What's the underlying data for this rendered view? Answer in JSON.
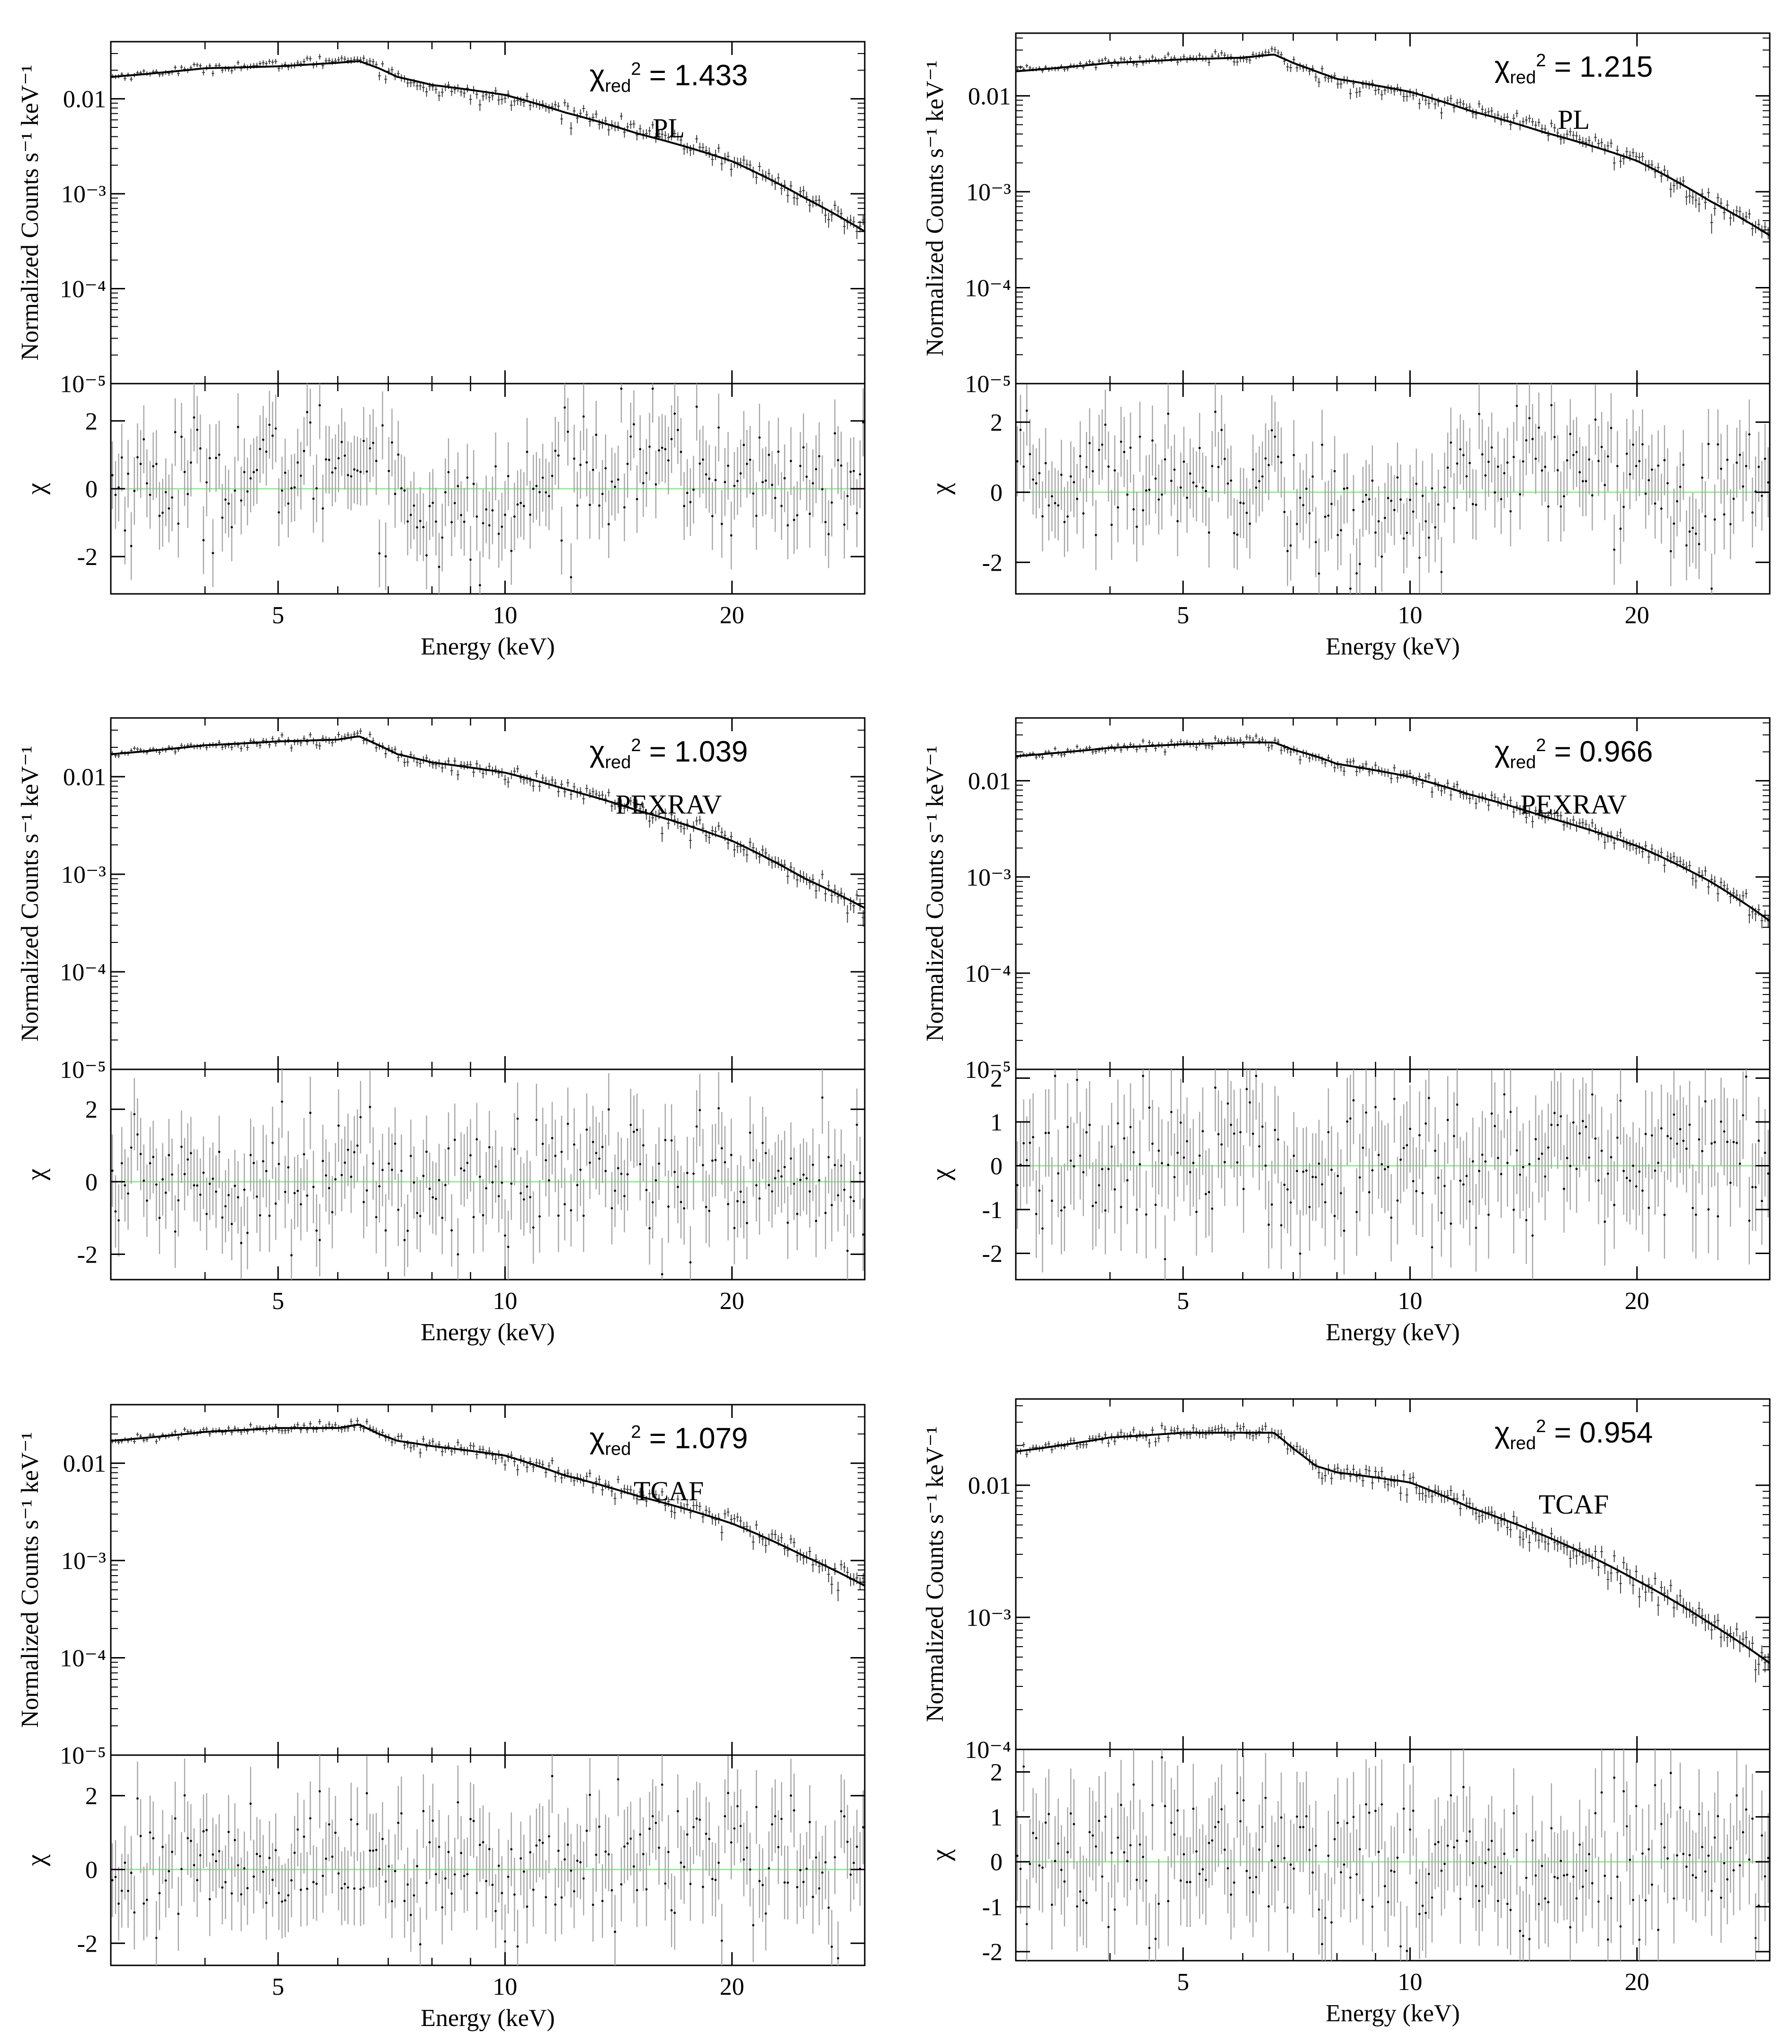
{
  "figure": {
    "panels": [
      {
        "chart_data": {
          "type": "scatter",
          "model": "PL",
          "chi2_value": "1.433",
          "xlabel": "Energy (keV)",
          "ylabel_spectrum": "Normalized Counts s⁻¹ keV⁻¹",
          "ylabel_residual": "χ",
          "x_scale": "log",
          "xlim": [
            3,
            30
          ],
          "x_ticks": [
            5,
            10,
            20
          ],
          "spectrum_scale": "log",
          "spectrum_ylim": [
            1e-05,
            0.04
          ],
          "spectrum_ticks": [
            "0.01",
            "10⁻³",
            "10⁻⁴",
            "10⁻⁵"
          ],
          "residual_ylim": [
            -3.1,
            3.1
          ],
          "residual_ticks": [
            2,
            0,
            -2
          ],
          "model_curve": {
            "x": [
              3,
              4,
              5,
              6,
              6.4,
              6.8,
              7.2,
              8,
              10,
              12,
              15,
              20,
              25,
              30
            ],
            "y": [
              0.017,
              0.021,
              0.022,
              0.024,
              0.025,
              0.021,
              0.017,
              0.014,
              0.011,
              0.0072,
              0.0043,
              0.0022,
              0.0009,
              0.0004
            ]
          },
          "residual_trend": {
            "x": [
              3,
              5,
              6.5,
              7.5,
              9,
              10,
              12,
              15,
              20,
              30
            ],
            "y": [
              0.2,
              0.5,
              1.2,
              -0.5,
              -1.0,
              -0.8,
              0.5,
              1.0,
              0.3,
              0.0
            ]
          }
        }
      },
      {
        "chart_data": {
          "type": "scatter",
          "model": "PL",
          "chi2_value": "1.215",
          "xlabel": "Energy (keV)",
          "ylabel_spectrum": "Normalized Counts s⁻¹ keV⁻¹",
          "ylabel_residual": "χ",
          "x_scale": "log",
          "xlim": [
            3,
            30
          ],
          "x_ticks": [
            5,
            10,
            20
          ],
          "spectrum_scale": "log",
          "spectrum_ylim": [
            1e-05,
            0.045
          ],
          "spectrum_ticks": [
            "0.01",
            "10⁻³",
            "10⁻⁴",
            "10⁻⁵"
          ],
          "residual_ylim": [
            -2.9,
            3.1
          ],
          "residual_ticks": [
            2,
            0,
            -2
          ],
          "model_curve": {
            "x": [
              3,
              4,
              5,
              6,
              6.6,
              7.0,
              7.5,
              8,
              10,
              12,
              15,
              20,
              25,
              30
            ],
            "y": [
              0.018,
              0.022,
              0.024,
              0.025,
              0.027,
              0.022,
              0.018,
              0.015,
              0.011,
              0.007,
              0.0042,
              0.0021,
              0.0008,
              0.00035
            ]
          },
          "residual_trend": {
            "x": [
              3,
              5,
              6.5,
              7.5,
              9,
              10,
              12,
              15,
              20,
              30
            ],
            "y": [
              0.2,
              0.6,
              0.8,
              -0.6,
              -0.9,
              -0.5,
              0.3,
              0.8,
              0.4,
              0.1
            ]
          }
        }
      },
      {
        "chart_data": {
          "type": "scatter",
          "model": "PEXRAV",
          "chi2_value": "1.039",
          "xlabel": "Energy (keV)",
          "ylabel_spectrum": "Normalized Counts s⁻¹ keV⁻¹",
          "ylabel_residual": "χ",
          "x_scale": "log",
          "xlim": [
            3,
            30
          ],
          "x_ticks": [
            5,
            10,
            20
          ],
          "spectrum_scale": "log",
          "spectrum_ylim": [
            1e-05,
            0.04
          ],
          "spectrum_ticks": [
            "0.01",
            "10⁻³",
            "10⁻⁴",
            "10⁻⁵"
          ],
          "residual_ylim": [
            -2.7,
            3.1
          ],
          "residual_ticks": [
            2,
            0,
            -2
          ],
          "model_curve": {
            "x": [
              3,
              4,
              5,
              6,
              6.4,
              6.8,
              7.2,
              8,
              10,
              12,
              15,
              20,
              25,
              30
            ],
            "y": [
              0.017,
              0.021,
              0.023,
              0.024,
              0.026,
              0.021,
              0.017,
              0.014,
              0.011,
              0.0075,
              0.0045,
              0.0022,
              0.0009,
              0.00045
            ]
          },
          "residual_trend": {
            "x": [
              3,
              5,
              6.5,
              7.5,
              9,
              10,
              12,
              15,
              20,
              30
            ],
            "y": [
              0.1,
              0.2,
              0.1,
              -0.2,
              0.2,
              -0.2,
              0.3,
              0.3,
              0.1,
              0.0
            ]
          }
        }
      },
      {
        "chart_data": {
          "type": "scatter",
          "model": "PEXRAV",
          "chi2_value": "0.966",
          "xlabel": "Energy (keV)",
          "ylabel_spectrum": "Normalized Counts s⁻¹ keV⁻¹",
          "ylabel_residual": "χ",
          "x_scale": "log",
          "xlim": [
            3,
            30
          ],
          "x_ticks": [
            5,
            10,
            20
          ],
          "spectrum_scale": "log",
          "spectrum_ylim": [
            1e-05,
            0.045
          ],
          "spectrum_ticks": [
            "0.01",
            "10⁻³",
            "10⁻⁴",
            "10⁻⁵"
          ],
          "residual_ylim": [
            -2.6,
            2.2
          ],
          "residual_ticks": [
            2,
            1,
            0,
            -1,
            -2
          ],
          "model_curve": {
            "x": [
              3,
              4,
              5,
              6,
              6.6,
              7.0,
              7.5,
              8,
              10,
              12,
              15,
              20,
              25,
              30
            ],
            "y": [
              0.018,
              0.022,
              0.024,
              0.025,
              0.025,
              0.021,
              0.018,
              0.015,
              0.011,
              0.0072,
              0.0043,
              0.0021,
              0.0009,
              0.00035
            ]
          },
          "residual_trend": {
            "x": [
              3,
              5,
              6.5,
              7.5,
              9,
              10,
              12,
              15,
              20,
              30
            ],
            "y": [
              0.0,
              0.2,
              0.3,
              -0.4,
              0.3,
              0.1,
              0.1,
              0.1,
              0.0,
              0.0
            ]
          }
        }
      },
      {
        "chart_data": {
          "type": "scatter",
          "model": "TCAF",
          "chi2_value": "1.079",
          "xlabel": "Energy (keV)",
          "ylabel_spectrum": "Normalized Counts s⁻¹ keV⁻¹",
          "ylabel_residual": "χ",
          "x_scale": "log",
          "xlim": [
            3,
            30
          ],
          "x_ticks": [
            5,
            10,
            20
          ],
          "spectrum_scale": "log",
          "spectrum_ylim": [
            1e-05,
            0.04
          ],
          "spectrum_ticks": [
            "0.01",
            "10⁻³",
            "10⁻⁴",
            "10⁻⁵"
          ],
          "residual_ylim": [
            -2.6,
            3.1
          ],
          "residual_ticks": [
            2,
            0,
            -2
          ],
          "model_curve": {
            "x": [
              3,
              4,
              5,
              6,
              6.4,
              6.8,
              7.2,
              8,
              10,
              12,
              15,
              20,
              25,
              30
            ],
            "y": [
              0.017,
              0.021,
              0.023,
              0.023,
              0.025,
              0.02,
              0.017,
              0.015,
              0.012,
              0.0075,
              0.0046,
              0.0024,
              0.0011,
              0.00055
            ]
          },
          "residual_trend": {
            "x": [
              3,
              5,
              6.5,
              7.5,
              9,
              10,
              12,
              15,
              20,
              30
            ],
            "y": [
              0.1,
              0.3,
              0.2,
              -0.2,
              0.2,
              -0.3,
              0.2,
              0.4,
              0.5,
              0.0
            ]
          }
        }
      },
      {
        "chart_data": {
          "type": "scatter",
          "model": "TCAF",
          "chi2_value": "0.954",
          "xlabel": "Energy (keV)",
          "ylabel_spectrum": "Normalized Counts s⁻¹ keV⁻¹",
          "ylabel_residual": "χ",
          "x_scale": "log",
          "xlim": [
            3,
            30
          ],
          "x_ticks": [
            5,
            10,
            20
          ],
          "spectrum_scale": "log",
          "spectrum_ylim": [
            0.0001,
            0.045
          ],
          "spectrum_ticks": [
            "0.01",
            "10⁻³",
            "10⁻⁴"
          ],
          "residual_ylim": [
            -2.2,
            2.5
          ],
          "residual_ticks": [
            2,
            1,
            0,
            -1,
            -2
          ],
          "model_curve": {
            "x": [
              3,
              4,
              5,
              6,
              6.6,
              7.0,
              7.5,
              8,
              10,
              12,
              15,
              20,
              25,
              30
            ],
            "y": [
              0.018,
              0.023,
              0.025,
              0.025,
              0.025,
              0.019,
              0.014,
              0.0125,
              0.0105,
              0.0068,
              0.0042,
              0.0019,
              0.0009,
              0.00045
            ]
          },
          "residual_trend": {
            "x": [
              3,
              5,
              6.5,
              7.5,
              9,
              10,
              12,
              15,
              20,
              30
            ],
            "y": [
              0.0,
              0.3,
              0.1,
              -0.3,
              0.2,
              0.0,
              0.1,
              0.0,
              0.1,
              0.0
            ]
          }
        }
      }
    ],
    "colors": {
      "model_line": "#000000",
      "data_points": "#333333",
      "residual_bars": "#a6a6a6",
      "zero_line": "#90ee90",
      "frame": "#000000"
    }
  }
}
